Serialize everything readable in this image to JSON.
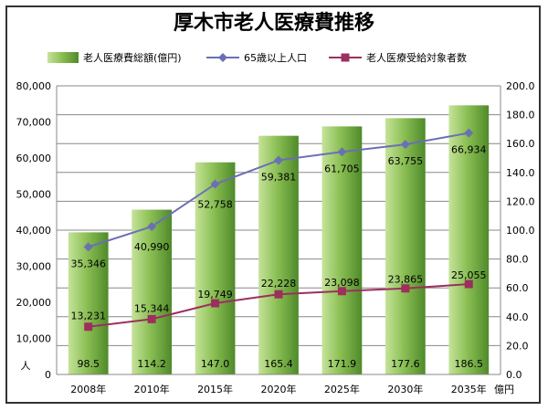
{
  "chart_data": {
    "type": "bar",
    "title": "厚木市老人医療費推移",
    "categories": [
      "2008年",
      "2010年",
      "2015年",
      "2020年",
      "2025年",
      "2030年",
      "2035年"
    ],
    "series": [
      {
        "name": "老人医療費総額(億円)",
        "type": "bar",
        "axis": "right",
        "values": [
          98.5,
          114.2,
          147.0,
          165.4,
          171.9,
          177.6,
          186.5
        ],
        "labels": [
          "98.5",
          "114.2",
          "147.0",
          "165.4",
          "171.9",
          "177.6",
          "186.5"
        ],
        "color": "#7ab648"
      },
      {
        "name": "65歳以上人口",
        "type": "line",
        "axis": "left",
        "values": [
          35346,
          40990,
          52758,
          59381,
          61705,
          63755,
          66934
        ],
        "labels": [
          "35,346",
          "40,990",
          "52,758",
          "59,381",
          "61,705",
          "63,755",
          "66,934"
        ],
        "color": "#6b6fb4"
      },
      {
        "name": "老人医療受給対象者数",
        "type": "line",
        "axis": "left",
        "values": [
          13231,
          15344,
          19749,
          22228,
          23098,
          23865,
          25055
        ],
        "labels": [
          "13,231",
          "15,344",
          "19,749",
          "22,228",
          "23,098",
          "23,865",
          "25,055"
        ],
        "color": "#9c2f5e"
      }
    ],
    "y_left": {
      "label": "人",
      "ylim": [
        0,
        80000
      ],
      "ticks": [
        "0",
        "10,000",
        "20,000",
        "30,000",
        "40,000",
        "50,000",
        "60,000",
        "70,000",
        "80,000"
      ]
    },
    "y_right": {
      "label": "億円",
      "ylim": [
        0,
        200
      ],
      "ticks": [
        "0.0",
        "20.0",
        "40.0",
        "60.0",
        "80.0",
        "100.0",
        "120.0",
        "140.0",
        "160.0",
        "180.0",
        "200.0"
      ]
    },
    "grid": true,
    "legend_position": "top"
  }
}
